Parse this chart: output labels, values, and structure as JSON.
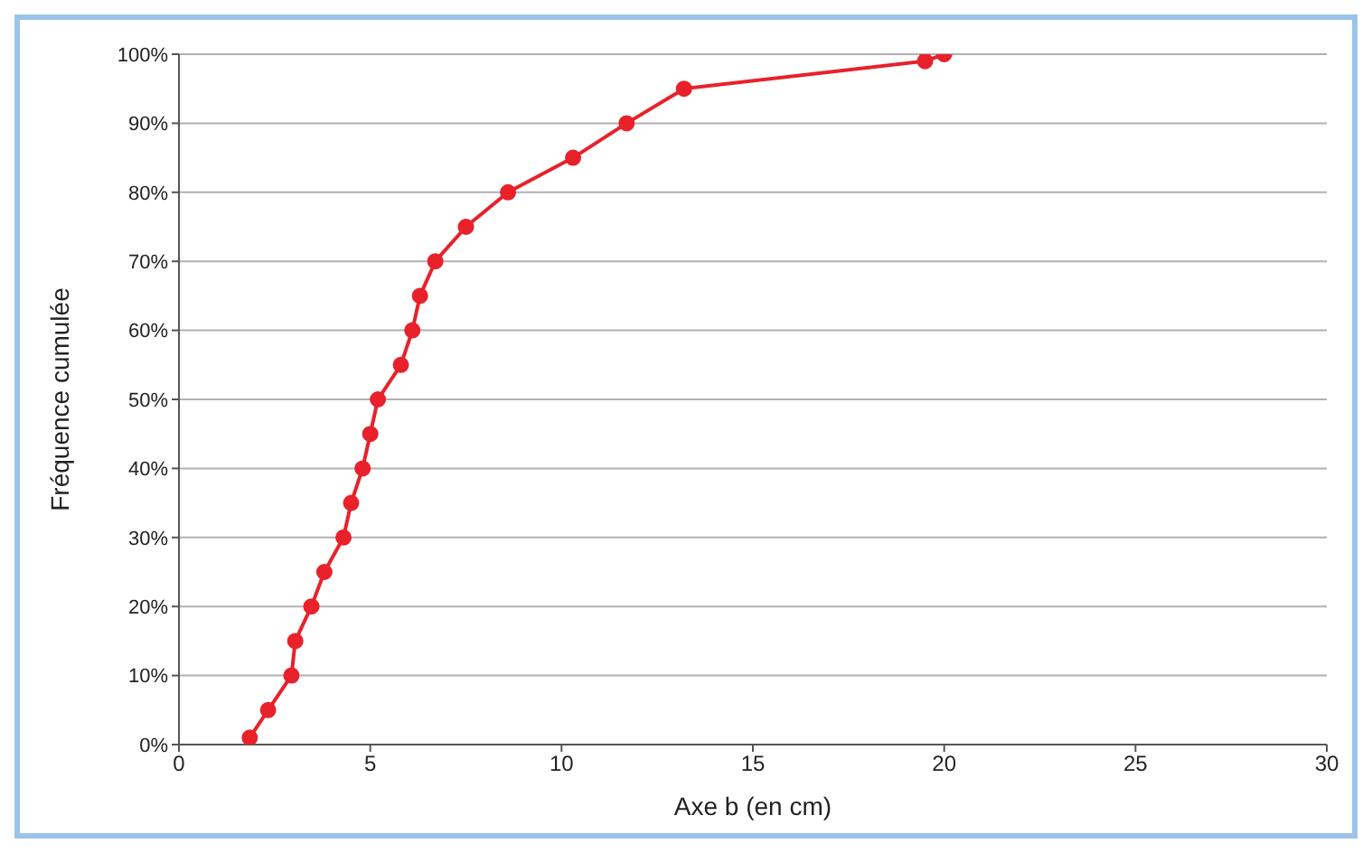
{
  "chart_data": {
    "type": "line",
    "xlabel": "Axe b (en cm)",
    "ylabel": "Fréquence cumulée",
    "x": [
      1.85,
      2.33,
      2.94,
      3.04,
      3.46,
      3.8,
      4.3,
      4.5,
      4.8,
      5.0,
      5.2,
      5.8,
      6.1,
      6.3,
      6.7,
      7.5,
      8.6,
      10.3,
      11.7,
      13.2,
      19.5,
      20.0
    ],
    "series": [
      {
        "color": "#e8212b",
        "values": [
          1,
          5,
          10,
          15,
          20,
          25,
          30,
          35,
          40,
          45,
          50,
          55,
          60,
          65,
          70,
          75,
          80,
          85,
          90,
          95,
          99,
          100
        ]
      }
    ],
    "xlim": [
      0,
      30
    ],
    "xticks": [
      0,
      5,
      10,
      15,
      20,
      25,
      30
    ],
    "ylim": [
      0,
      100
    ],
    "yticks": [
      {
        "value": 0,
        "label": "0%"
      },
      {
        "value": 10,
        "label": "10%"
      },
      {
        "value": 20,
        "label": "20%"
      },
      {
        "value": 30,
        "label": "30%"
      },
      {
        "value": 40,
        "label": "40%"
      },
      {
        "value": 50,
        "label": "50%"
      },
      {
        "value": 60,
        "label": "60%"
      },
      {
        "value": 70,
        "label": "70%"
      },
      {
        "value": 80,
        "label": "80%"
      },
      {
        "value": 90,
        "label": "90%"
      },
      {
        "value": 100,
        "label": "100%"
      }
    ],
    "grid": "y",
    "marker": "circle",
    "line_style": "solid"
  }
}
